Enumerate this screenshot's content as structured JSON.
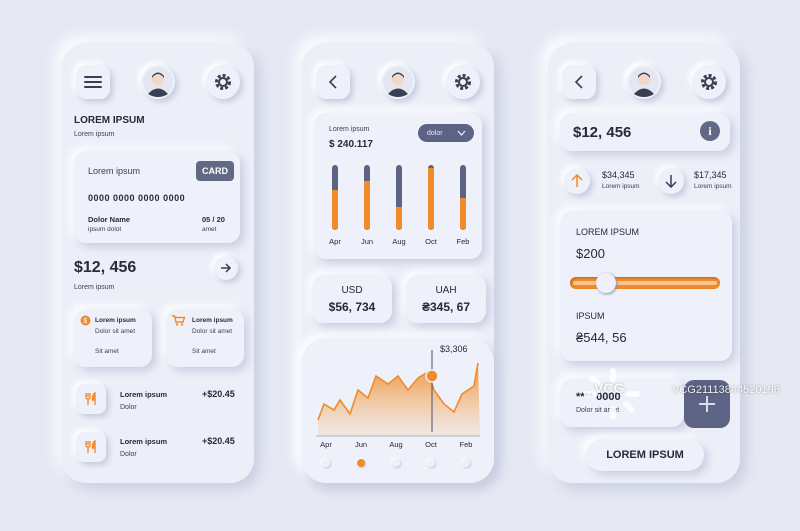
{
  "screen1": {
    "header": {
      "menu_icon": "hamburger-icon",
      "profile_icon": "avatar-icon",
      "settings_icon": "gear-icon"
    },
    "title": "LOREM IPSUM",
    "subtitle": "Lorem ipsum",
    "bank_card": {
      "label": "Lorem ipsum",
      "badge": "CARD",
      "number": "0000 0000 0000 0000",
      "holder_name": "Dolor Name",
      "holder_sub": "ipsum dolot",
      "expiry": "05 / 20",
      "expiry_sub": "amet"
    },
    "balance": {
      "value": "$12, 456",
      "label": "Lorem ipsum"
    },
    "tiles": [
      {
        "icon": "coin-icon",
        "title": "Lorem ipsum",
        "line2": "Dolor sit amet",
        "line3": "Sit amet"
      },
      {
        "icon": "cart-icon",
        "title": "Lorem ipsum",
        "line2": "Dolor sit amet",
        "line3": "Sit amet"
      }
    ],
    "transactions": [
      {
        "icon": "cutlery-icon",
        "title": "Lorem ipsum",
        "sub": "Dolor",
        "amount": "+$20.45"
      },
      {
        "icon": "cutlery-icon",
        "title": "Lorem ipsum",
        "sub": "Dolor",
        "amount": "+$20.45"
      }
    ]
  },
  "screen2": {
    "summary": {
      "label": "Lorem ipsum",
      "value": "$ 240.117",
      "dropdown": "dolor"
    },
    "bar_months": [
      "Apr",
      "Jun",
      "Aug",
      "Oct",
      "Feb"
    ],
    "bar_levels": [
      0.62,
      0.75,
      0.35,
      0.95,
      0.5
    ],
    "currencies": [
      {
        "code": "USD",
        "value": "$56, 734"
      },
      {
        "code": "UAH",
        "value": "₴345, 67"
      }
    ],
    "area_chart": {
      "peak_label": "$3,306",
      "x_labels": [
        "Apr",
        "Jun",
        "Aug",
        "Oct",
        "Feb"
      ],
      "active_page": 1
    }
  },
  "screen3": {
    "balance": {
      "value": "$12, 456",
      "info_icon": "info-icon"
    },
    "income": {
      "icon": "arrow-up-icon",
      "value": "$34,345",
      "label": "Lorem ipsum"
    },
    "expense": {
      "icon": "arrow-down-icon",
      "value": "$17,345",
      "label": "Lorem ipsum"
    },
    "panel": {
      "title": "LOREM IPSUM",
      "amount": "$200",
      "slider_level": 0.2,
      "label2": "IPSUM",
      "amount2": "₴544, 56"
    },
    "card_row": {
      "masked": "**** 0000",
      "sub": "Dolor sit amet"
    },
    "cta_button": "LOREM IPSUM"
  },
  "watermark": {
    "brand": "VCG",
    "code": "VCG21113844520196"
  }
}
